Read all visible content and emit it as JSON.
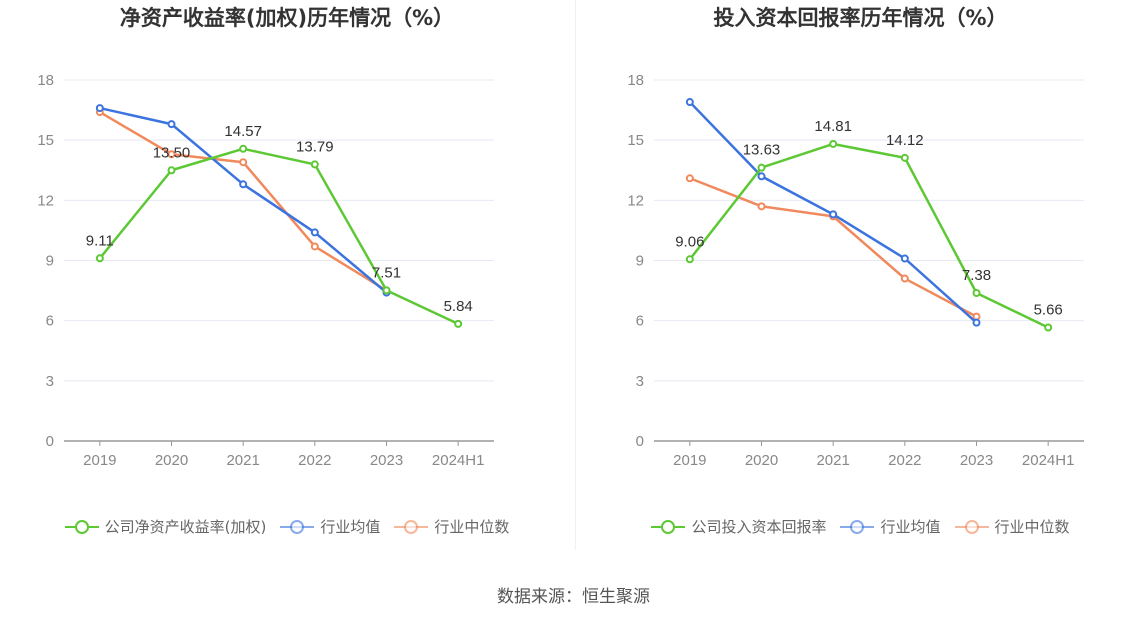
{
  "source_label": "数据来源：恒生聚源",
  "colors": {
    "company": "#5cc834",
    "avg": "#3b73df",
    "median": "#f0895c"
  },
  "chart_data": [
    {
      "type": "line",
      "title": "净资产收益率(加权)历年情况（%）",
      "categories": [
        "2019",
        "2020",
        "2021",
        "2022",
        "2023",
        "2024H1"
      ],
      "ylim": [
        0,
        18
      ],
      "yticks": [
        0,
        3,
        6,
        9,
        12,
        15,
        18
      ],
      "grid": true,
      "legend_position": "bottom",
      "series": [
        {
          "name": "公司净资产收益率(加权)",
          "key": "company",
          "values": [
            9.11,
            13.5,
            14.57,
            13.79,
            7.51,
            5.84
          ],
          "labels": [
            "9.11",
            "13.50",
            "14.57",
            "13.79",
            "7.51",
            "5.84"
          ]
        },
        {
          "name": "行业均值",
          "key": "avg",
          "values": [
            16.6,
            15.8,
            12.8,
            10.4,
            7.4,
            null
          ]
        },
        {
          "name": "行业中位数",
          "key": "median",
          "values": [
            16.4,
            14.3,
            13.9,
            9.7,
            7.5,
            null
          ]
        }
      ]
    },
    {
      "type": "line",
      "title": "投入资本回报率历年情况（%）",
      "categories": [
        "2019",
        "2020",
        "2021",
        "2022",
        "2023",
        "2024H1"
      ],
      "ylim": [
        0,
        18
      ],
      "yticks": [
        0,
        3,
        6,
        9,
        12,
        15,
        18
      ],
      "grid": true,
      "legend_position": "bottom",
      "series": [
        {
          "name": "公司投入资本回报率",
          "key": "company",
          "values": [
            9.06,
            13.63,
            14.81,
            14.12,
            7.38,
            5.66
          ],
          "labels": [
            "9.06",
            "13.63",
            "14.81",
            "14.12",
            "7.38",
            "5.66"
          ]
        },
        {
          "name": "行业均值",
          "key": "avg",
          "values": [
            16.9,
            13.2,
            11.3,
            9.1,
            5.9,
            null
          ]
        },
        {
          "name": "行业中位数",
          "key": "median",
          "values": [
            13.1,
            11.7,
            11.2,
            8.1,
            6.2,
            null
          ]
        }
      ]
    }
  ]
}
